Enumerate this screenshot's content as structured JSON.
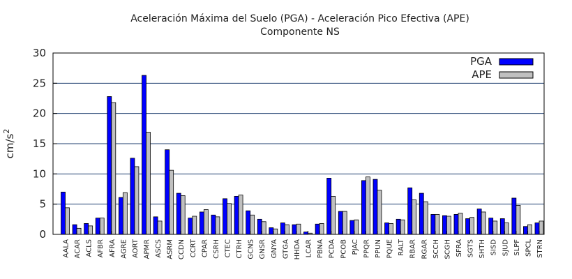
{
  "chart_data": {
    "type": "bar",
    "title": "Aceleración Máxima del Suelo (PGA) -   Aceleración Pico Efectiva (APE)",
    "subtitle": "Componente NS",
    "ylabel": "cm/s",
    "ylabel_sup": "2",
    "xlabel": "",
    "ylim": [
      0,
      30
    ],
    "yticks": [
      0,
      5,
      10,
      15,
      20,
      25,
      30
    ],
    "grid": true,
    "legend_position": "top-right",
    "colors": {
      "PGA": "#0000ff",
      "APE": "#c0c0c0"
    },
    "categories": [
      "AALA",
      "ACAR",
      "ACLS",
      "AFBR",
      "AFRA",
      "AGRE",
      "AORT",
      "APMR",
      "ASCS",
      "ASRM",
      "CCDN",
      "CCRT",
      "CPAR",
      "CSRH",
      "CTEC",
      "CTRH",
      "GCNS",
      "GNSR",
      "GNYA",
      "GTGA",
      "HHDA",
      "LCAR",
      "PBNA",
      "PCDA",
      "PCOB",
      "PJAC",
      "PPQR",
      "PPUN",
      "PQUE",
      "RALT",
      "RBAR",
      "RGAR",
      "SCCH",
      "SCGH",
      "SFRA",
      "SGTS",
      "SHTH",
      "SISD",
      "SJUD",
      "SLPF",
      "SPCL",
      "STRN"
    ],
    "series": [
      {
        "name": "PGA",
        "values": [
          7.0,
          1.6,
          1.8,
          2.7,
          22.8,
          6.1,
          12.6,
          26.3,
          2.9,
          14.0,
          6.8,
          2.7,
          3.7,
          3.2,
          5.9,
          6.3,
          3.9,
          2.5,
          1.1,
          1.9,
          1.6,
          0.4,
          1.7,
          9.3,
          3.8,
          2.3,
          8.9,
          9.1,
          1.9,
          2.5,
          7.7,
          6.8,
          3.3,
          3.1,
          3.3,
          2.6,
          4.2,
          2.7,
          2.6,
          6.0,
          1.3,
          1.9
        ]
      },
      {
        "name": "APE",
        "values": [
          4.4,
          1.0,
          1.4,
          2.7,
          21.8,
          6.9,
          11.2,
          16.9,
          2.2,
          10.6,
          6.4,
          3.0,
          4.1,
          2.9,
          5.1,
          6.5,
          3.2,
          2.1,
          0.9,
          1.6,
          1.7,
          0.2,
          1.8,
          6.3,
          3.8,
          2.4,
          9.5,
          7.3,
          1.8,
          2.4,
          5.7,
          5.4,
          3.3,
          3.0,
          3.5,
          2.8,
          3.7,
          2.2,
          1.9,
          4.8,
          1.6,
          2.2
        ]
      }
    ]
  }
}
